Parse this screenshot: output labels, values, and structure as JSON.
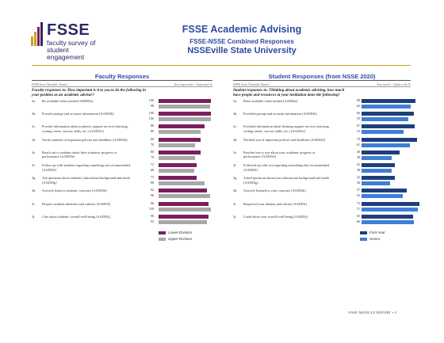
{
  "logo": {
    "word": "FSSE",
    "line1": "faculty survey of",
    "line2": "student engagement"
  },
  "header": {
    "title": "FSSE Academic Advising",
    "subtitle": "FSSE-NSSE Combined Responses",
    "institution": "NSSEville State University"
  },
  "left": {
    "title": "Faculty Responses",
    "col_item": "FSSE Item [Variable Name]",
    "col_scale": "Very important + Important %",
    "question": "Faculty responses to: How important is it to you to do the following in your position as an academic advisor?",
    "items": [
      {
        "num": "3a.",
        "text": [
          "Be available when needed [ADD03a]"
        ],
        "lower": "100",
        "upper": "98",
        "lower_v": 100,
        "upper_v": 98
      },
      {
        "num": "3b.",
        "text": [
          "Provide prompt and accurate information [AAD03b]"
        ],
        "lower": "100",
        "upper": "100",
        "lower_v": 100,
        "upper_v": 100
      },
      {
        "num": "3c.",
        "text": [
          "Provide information about academic support services (tutoring,",
          "writing center, success skills, etc.) [AAD03c]"
        ],
        "lower": "88",
        "upper": "80",
        "lower_v": 88,
        "upper_v": 80
      },
      {
        "num": "3d.",
        "text": [
          "Notify students of important policies and deadlines [AAD03d]"
        ],
        "lower": "80",
        "upper": "70",
        "lower_v": 80,
        "upper_v": 70
      },
      {
        "num": "3e.",
        "text": [
          "Reach out to students about their academic progress or",
          "performance [AAD03e]"
        ],
        "lower": "80",
        "upper": "70",
        "lower_v": 80,
        "upper_v": 70
      },
      {
        "num": "3f.",
        "text": [
          "Follow up with students regarding something you recommended",
          "[AAD03f]"
        ],
        "lower": "72",
        "upper": "68",
        "lower_v": 72,
        "upper_v": 68
      },
      {
        "num": "3g.",
        "text": [
          "Ask questions about students' educational background and needs",
          "[AAD03g]"
        ],
        "lower": "73",
        "upper": "88",
        "lower_v": 73,
        "upper_v": 88
      },
      {
        "num": "3h.",
        "text": [
          "Actively listen to students' concerns [AAD03h]"
        ],
        "lower": "92",
        "upper": "98",
        "lower_v": 92,
        "upper_v": 98
      },
      {
        "num": "3i.",
        "text": [
          "Respect students identities and cultures [AAD03i]"
        ],
        "lower": "96",
        "upper": "100",
        "lower_v": 96,
        "upper_v": 100
      },
      {
        "num": "3j.",
        "text": [
          "Care about students' overall well-being [AAD03j]"
        ],
        "lower": "96",
        "upper": "93",
        "lower_v": 96,
        "upper_v": 93
      }
    ],
    "legend": {
      "lower": "Lower-Division",
      "upper": "Upper-Division"
    },
    "colors": {
      "lower": "#7b1e5e",
      "upper": "#a9a9a9"
    }
  },
  "right": {
    "title": "Student Responses (from NSSE 2020)",
    "col_item": "NSSE Item [Variable Name]",
    "col_scale": "Very much + Quite a bit %",
    "question": "Student responses to: Thinking about academic advising, how much have people and resources at your institution done the following?",
    "items": [
      {
        "num": "3a.",
        "text": [
          "Been available when needed [AAD03a]"
        ],
        "fy": "68",
        "sr": "62",
        "fy_v": 68,
        "sr_v": 62
      },
      {
        "num": "3b.",
        "text": [
          "Provided prompt and accurate information [AAD03b]"
        ],
        "fy": "66",
        "sr": "59",
        "fy_v": 66,
        "sr_v": 59
      },
      {
        "num": "3c.",
        "text": [
          "Provided information about learning support services (tutoring,",
          "writing center, success skills, etc.) [AAD03c]"
        ],
        "fy": "67",
        "sr": "53",
        "fy_v": 67,
        "sr_v": 53
      },
      {
        "num": "3d.",
        "text": [
          "Notified you of important policies and deadlines [AAD03d]"
        ],
        "fy": "70",
        "sr": "61",
        "fy_v": 70,
        "sr_v": 61
      },
      {
        "num": "3e.",
        "text": [
          "Reached out to you about your academic progress or",
          "performance [AAD03e]"
        ],
        "fy": "48",
        "sr": "38",
        "fy_v": 48,
        "sr_v": 38
      },
      {
        "num": "3f.",
        "text": [
          "Followed up with you regarding something they recommended",
          "[AAD03f]"
        ],
        "fy": "42",
        "sr": "38",
        "fy_v": 42,
        "sr_v": 38
      },
      {
        "num": "3g.",
        "text": [
          "Asked questions about your educational background and needs",
          "[AAD03g]"
        ],
        "fy": "42",
        "sr": "36",
        "fy_v": 42,
        "sr_v": 36
      },
      {
        "num": "3h.",
        "text": [
          "Actively listened to your concerns [AAD03h]"
        ],
        "fy": "57",
        "sr": "52",
        "fy_v": 57,
        "sr_v": 52
      },
      {
        "num": "3i.",
        "text": [
          "Respected your identity and culture [AAD03i]"
        ],
        "fy": "73",
        "sr": "71",
        "fy_v": 73,
        "sr_v": 71
      },
      {
        "num": "3j.",
        "text": [
          "Cared about your overall well-being [AAD03j]"
        ],
        "fy": "65",
        "sr": "66",
        "fy_v": 65,
        "sr_v": 66
      }
    ],
    "legend": {
      "fy": "First-Year",
      "sr": "Senior"
    },
    "colors": {
      "fy": "#1f3f7a",
      "sr": "#3f7fd6"
    }
  },
  "footer": "FSSE MODULE REPORT  •  2"
}
